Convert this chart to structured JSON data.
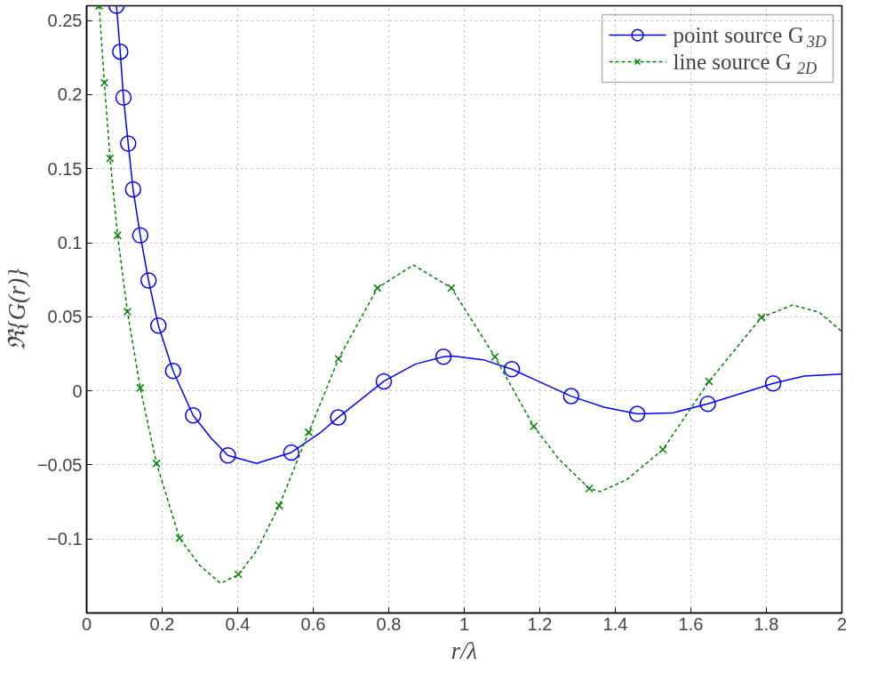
{
  "chart_data": {
    "type": "line",
    "xlabel": "r/λ",
    "ylabel": "ℜ{G(r)}",
    "xlim": [
      0,
      2
    ],
    "ylim": [
      -0.15,
      0.26
    ],
    "xticks": [
      0,
      0.2,
      0.4,
      0.6,
      0.8,
      1,
      1.2,
      1.4,
      1.6,
      1.8,
      2
    ],
    "yticks": [
      {
        "value": -0.1,
        "label": "−0.1"
      },
      {
        "value": -0.05,
        "label": "−0.05"
      },
      0,
      0.05,
      0.1,
      0.15,
      0.2,
      0.25
    ],
    "grid": true,
    "legend": "top right",
    "series": [
      {
        "name": "point source G$_{3D}$",
        "color": "#0000ff",
        "line_style": "solid",
        "marker": "none",
        "x": [
          0.079,
          0.089,
          0.0975,
          0.11,
          0.123,
          0.142,
          0.164,
          0.19,
          0.229,
          0.282,
          0.33,
          0.374,
          0.45,
          0.542,
          0.62,
          0.666,
          0.787,
          0.87,
          0.945,
          0.97,
          1.05,
          1.126,
          1.2,
          1.283,
          1.37,
          1.458,
          1.55,
          1.645,
          1.818,
          1.9,
          2
        ],
        "values": [
          0.26,
          0.229,
          0.198,
          0.167,
          0.136,
          0.105,
          0.0745,
          0.044,
          0.0134,
          -0.0166,
          -0.032,
          -0.0436,
          -0.049,
          -0.0416,
          -0.028,
          -0.018,
          0.0064,
          0.018,
          0.023,
          0.0235,
          0.021,
          0.0146,
          0.006,
          -0.0036,
          -0.011,
          -0.0156,
          -0.015,
          -0.0088,
          0.005,
          0.01,
          0.0114
        ]
      },
      {
        "type": "scatter",
        "color": "#0000ff",
        "marker": "circle",
        "x": [
          0.079,
          0.089,
          0.0975,
          0.11,
          0.123,
          0.142,
          0.164,
          0.19,
          0.229,
          0.282,
          0.374,
          0.542,
          0.666,
          0.787,
          0.945,
          1.126,
          1.283,
          1.458,
          1.645,
          1.818
        ],
        "values": [
          0.26,
          0.229,
          0.198,
          0.167,
          0.136,
          0.105,
          0.0745,
          0.044,
          0.0134,
          -0.0166,
          -0.0436,
          -0.0416,
          -0.018,
          0.0064,
          0.023,
          0.0146,
          -0.0036,
          -0.0156,
          -0.0088,
          0.005
        ]
      },
      {
        "name": "line source G$_{2D}$",
        "color": "#008000",
        "line_style": "dashed",
        "marker": "none",
        "x": [
          0.033,
          0.047,
          0.062,
          0.082,
          0.108,
          0.142,
          0.185,
          0.246,
          0.3,
          0.355,
          0.402,
          0.45,
          0.51,
          0.588,
          0.667,
          0.77,
          0.865,
          0.966,
          1.081,
          1.184,
          1.25,
          1.331,
          1.36,
          1.43,
          1.526,
          1.648,
          1.787,
          1.87,
          1.94,
          2
        ],
        "values": [
          0.26,
          0.208,
          0.157,
          0.105,
          0.0534,
          0.002,
          -0.049,
          -0.0995,
          -0.118,
          -0.13,
          -0.124,
          -0.108,
          -0.0775,
          -0.028,
          0.0216,
          0.0694,
          0.085,
          0.0695,
          0.023,
          -0.024,
          -0.046,
          -0.066,
          -0.068,
          -0.06,
          -0.0396,
          0.0064,
          0.0496,
          0.058,
          0.053,
          0.04
        ]
      },
      {
        "type": "scatter",
        "color": "#008000",
        "marker": "cross",
        "x": [
          0.033,
          0.047,
          0.062,
          0.082,
          0.108,
          0.142,
          0.185,
          0.246,
          0.402,
          0.51,
          0.588,
          0.667,
          0.77,
          0.966,
          1.081,
          1.184,
          1.331,
          1.526,
          1.648,
          1.787
        ],
        "values": [
          0.26,
          0.208,
          0.157,
          0.105,
          0.0534,
          0.002,
          -0.049,
          -0.0995,
          -0.124,
          -0.0775,
          -0.028,
          0.0216,
          0.0694,
          0.0695,
          0.023,
          -0.024,
          -0.066,
          -0.0396,
          0.0064,
          0.0496
        ]
      }
    ]
  }
}
